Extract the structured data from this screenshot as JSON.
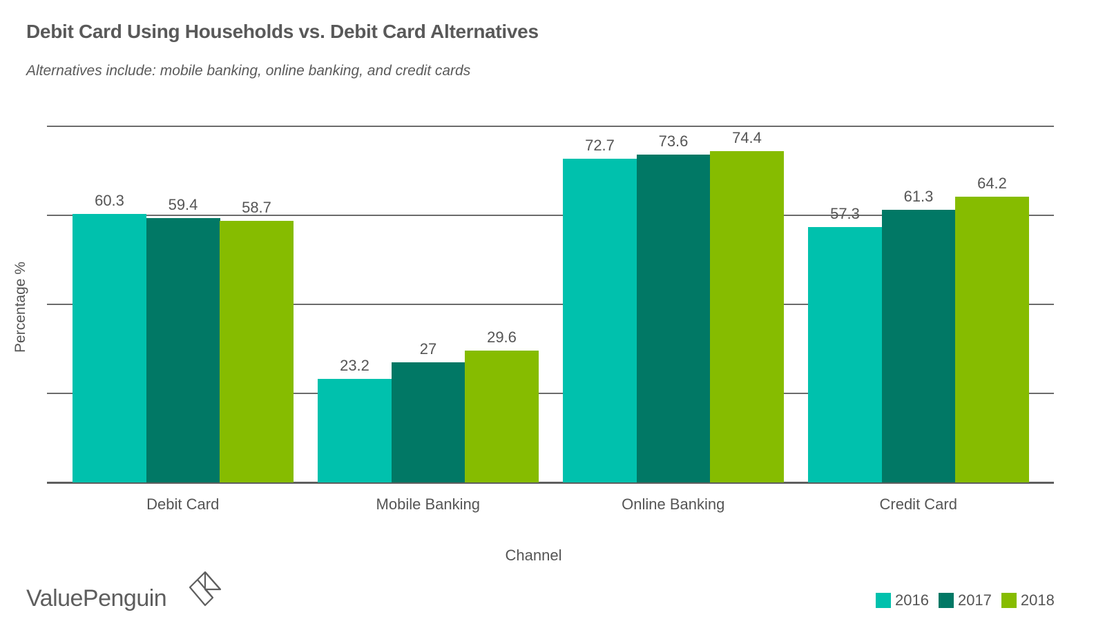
{
  "header": {
    "title": "Debit Card Using Households vs. Debit Card Alternatives",
    "subtitle": "Alternatives include: mobile banking, online banking, and credit cards"
  },
  "brand": {
    "name": "ValuePenguin",
    "icon": "valuepenguin-diamond-logo-icon"
  },
  "colors": {
    "s2016": "#00c1ad",
    "s2017": "#017865",
    "s2018": "#86bc00",
    "grid": "#6b6b6b",
    "text": "#555555"
  },
  "chart_data": {
    "type": "bar",
    "title": "Debit Card Using Households vs. Debit Card Alternatives",
    "subtitle": "Alternatives include: mobile banking, online banking, and credit cards",
    "xlabel": "Channel",
    "ylabel": "Percentage %",
    "categories": [
      "Debit Card",
      "Mobile Banking",
      "Online Banking",
      "Credit Card"
    ],
    "series": [
      {
        "name": "2016",
        "values": [
          60.3,
          23.2,
          72.7,
          57.3
        ],
        "color": "#00c1ad"
      },
      {
        "name": "2017",
        "values": [
          59.4,
          27,
          73.6,
          61.3
        ],
        "color": "#017865"
      },
      {
        "name": "2018",
        "values": [
          58.7,
          29.6,
          74.4,
          64.2
        ],
        "color": "#86bc00"
      }
    ],
    "ylim": [
      0,
      80
    ],
    "grid": true,
    "gridlines": [
      0,
      20,
      40,
      60,
      80
    ],
    "y_tick_labels_shown": false,
    "data_labels": true,
    "legend_position": "bottom-right"
  },
  "legend": [
    {
      "label": "2016",
      "color": "#00c1ad"
    },
    {
      "label": "2017",
      "color": "#017865"
    },
    {
      "label": "2018",
      "color": "#86bc00"
    }
  ]
}
